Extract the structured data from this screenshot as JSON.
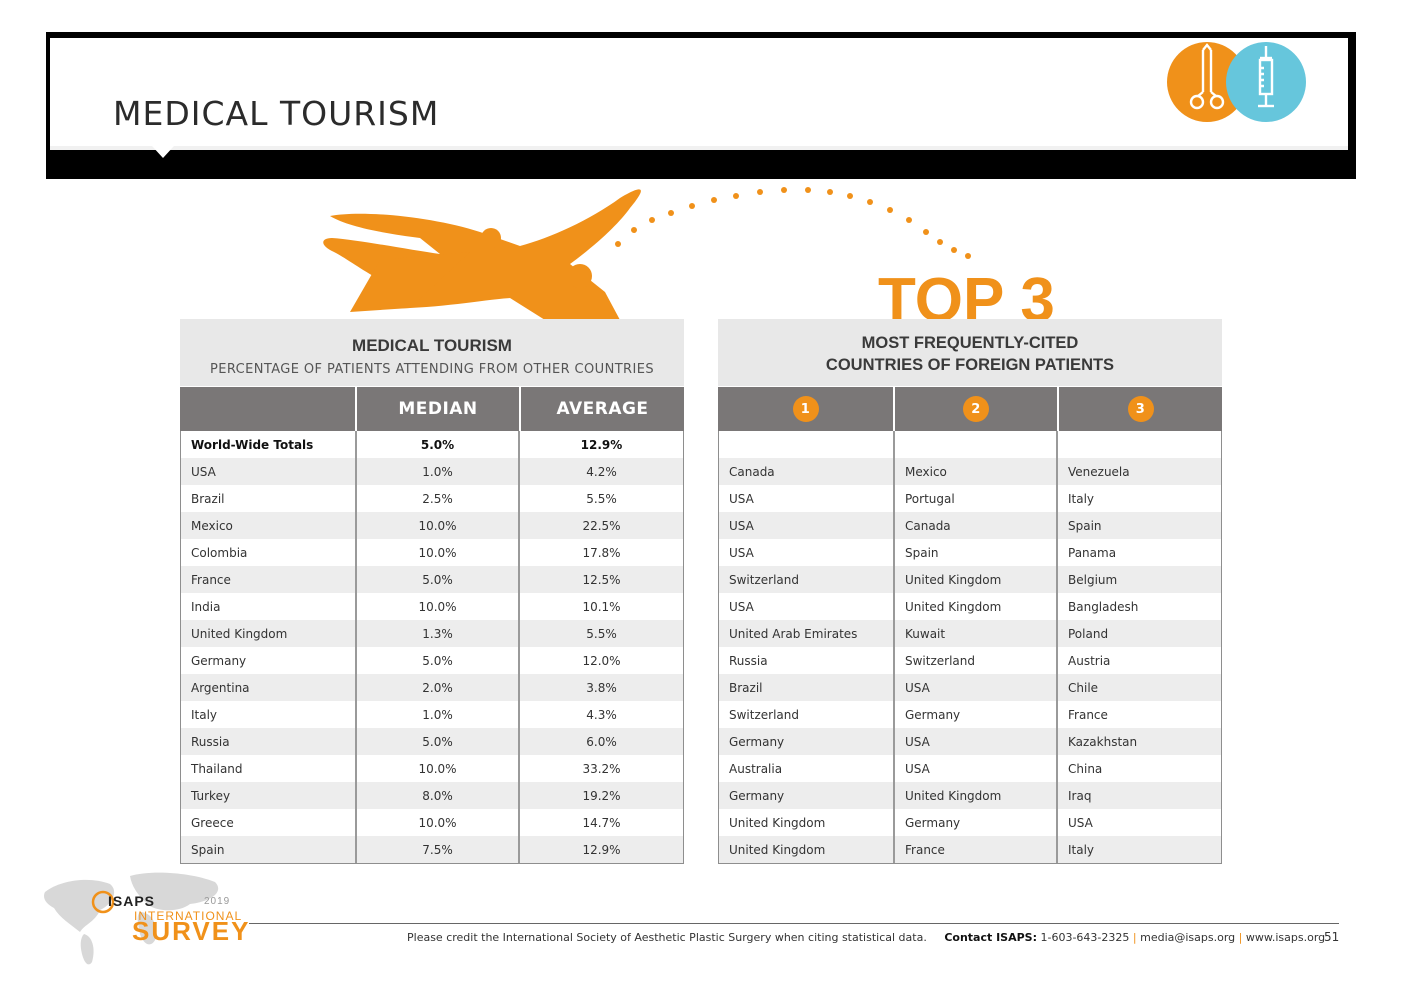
{
  "header": {
    "title": "MEDICAL TOURISM",
    "icons": [
      "scissors-icon",
      "syringe-icon"
    ],
    "accent_orange": "#f0911a",
    "accent_blue": "#66c6dc"
  },
  "top3_label": "TOP 3",
  "left_table": {
    "title": "MEDICAL TOURISM",
    "subtitle": "PERCENTAGE OF PATIENTS ATTENDING FROM OTHER COUNTRIES",
    "col_median": "MEDIAN",
    "col_average": "AVERAGE",
    "total": {
      "name": "World-Wide Totals",
      "median": "5.0%",
      "average": "12.9%"
    },
    "rows": [
      {
        "name": "USA",
        "median": "1.0%",
        "average": "4.2%"
      },
      {
        "name": "Brazil",
        "median": "2.5%",
        "average": "5.5%"
      },
      {
        "name": "Mexico",
        "median": "10.0%",
        "average": "22.5%"
      },
      {
        "name": "Colombia",
        "median": "10.0%",
        "average": "17.8%"
      },
      {
        "name": "France",
        "median": "5.0%",
        "average": "12.5%"
      },
      {
        "name": "India",
        "median": "10.0%",
        "average": "10.1%"
      },
      {
        "name": "United Kingdom",
        "median": "1.3%",
        "average": "5.5%"
      },
      {
        "name": "Germany",
        "median": "5.0%",
        "average": "12.0%"
      },
      {
        "name": "Argentina",
        "median": "2.0%",
        "average": "3.8%"
      },
      {
        "name": "Italy",
        "median": "1.0%",
        "average": "4.3%"
      },
      {
        "name": "Russia",
        "median": "5.0%",
        "average": "6.0%"
      },
      {
        "name": "Thailand",
        "median": "10.0%",
        "average": "33.2%"
      },
      {
        "name": "Turkey",
        "median": "8.0%",
        "average": "19.2%"
      },
      {
        "name": "Greece",
        "median": "10.0%",
        "average": "14.7%"
      },
      {
        "name": "Spain",
        "median": "7.5%",
        "average": "12.9%"
      }
    ]
  },
  "right_table": {
    "title_line1": "MOST FREQUENTLY-CITED",
    "title_line2": "COUNTRIES OF FOREIGN PATIENTS",
    "ranks": [
      "1",
      "2",
      "3"
    ],
    "rows": [
      [
        "Canada",
        "Mexico",
        "Venezuela"
      ],
      [
        "USA",
        "Portugal",
        "Italy"
      ],
      [
        "USA",
        "Canada",
        "Spain"
      ],
      [
        "USA",
        "Spain",
        "Panama"
      ],
      [
        "Switzerland",
        "United Kingdom",
        "Belgium"
      ],
      [
        "USA",
        "United Kingdom",
        "Bangladesh"
      ],
      [
        "United Arab Emirates",
        "Kuwait",
        "Poland"
      ],
      [
        "Russia",
        "Switzerland",
        "Austria"
      ],
      [
        "Brazil",
        "USA",
        "Chile"
      ],
      [
        "Switzerland",
        "Germany",
        "France"
      ],
      [
        "Germany",
        "USA",
        "Kazakhstan"
      ],
      [
        "Australia",
        "USA",
        "China"
      ],
      [
        "Germany",
        "United Kingdom",
        "Iraq"
      ],
      [
        "United Kingdom",
        "Germany",
        "USA"
      ],
      [
        "United Kingdom",
        "France",
        "Italy"
      ]
    ]
  },
  "footer": {
    "credit": "Please credit the International Society of Aesthetic Plastic Surgery when citing statistical data.",
    "contact_label": "Contact ISAPS:",
    "phone": "1-603-643-2325",
    "email": "media@isaps.org",
    "website": "www.isaps.org",
    "separator": "|",
    "page_number": "51"
  },
  "logo": {
    "isaps": "ISAPS",
    "year": "2019",
    "international": "INTERNATIONAL",
    "survey": "SURVEY"
  }
}
